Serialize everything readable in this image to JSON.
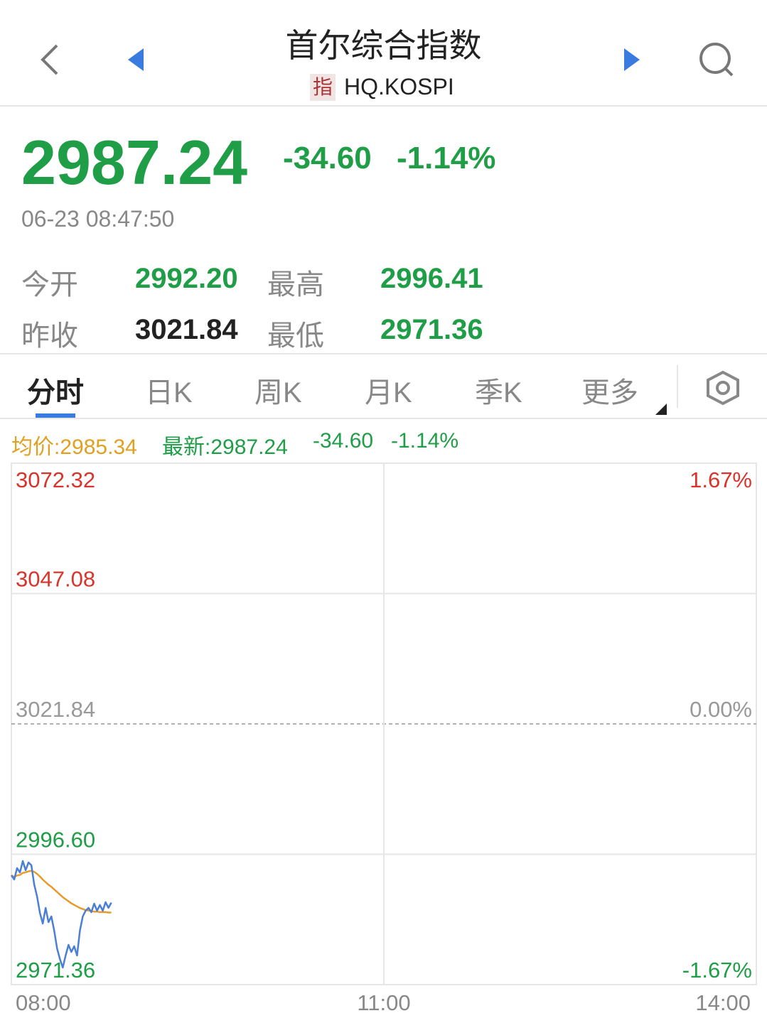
{
  "header": {
    "title": "首尔综合指数",
    "badge": "指",
    "code": "HQ.KOSPI"
  },
  "quote": {
    "price": "2987.24",
    "change": "-34.60",
    "change_pct": "-1.14%",
    "time": "06-23 08:47:50"
  },
  "stats": {
    "rows": [
      [
        "今开",
        "2992.20",
        "最高",
        "2996.41"
      ],
      [
        "昨收",
        "3021.84",
        "最低",
        "2971.36"
      ]
    ]
  },
  "tabs": [
    "分时",
    "日K",
    "周K",
    "月K",
    "季K",
    "更多"
  ],
  "chart_info": {
    "avg_label": "均价:2985.34",
    "latest_label": "最新:2987.24",
    "change": "-34.60",
    "change_pct": "-1.14%"
  },
  "chart_data": {
    "type": "line",
    "x": [
      8.0,
      8.023,
      8.046,
      8.069,
      8.092,
      8.115,
      8.138,
      8.161,
      8.184,
      8.207,
      8.23,
      8.253,
      8.276,
      8.299,
      8.322,
      8.345,
      8.368,
      8.391,
      8.414,
      8.437,
      8.46,
      8.483,
      8.506,
      8.529,
      8.552,
      8.575,
      8.598,
      8.621,
      8.644,
      8.667,
      8.69,
      8.713,
      8.736,
      8.759,
      8.782,
      8.805
    ],
    "series": [
      {
        "color": "#4a7fd4",
        "values": [
          2992.54,
          2991.72,
          2993.92,
          2993.09,
          2995.29,
          2993.51,
          2995.02,
          2994.47,
          2990.75,
          2988.42,
          2985.25,
          2983.19,
          2986.22,
          2983.46,
          2984.56,
          2981.81,
          2978.38,
          2976.31,
          2974.66,
          2977.0,
          2979.06,
          2977.69,
          2978.79,
          2977.0,
          2981.81,
          2984.56,
          2985.67,
          2986.22,
          2985.39,
          2987.04,
          2985.67,
          2986.77,
          2985.67,
          2987.32,
          2986.22,
          2987.24
        ]
      },
      {
        "color": "#e89a2c",
        "values": [
          2992.54,
          2992.2,
          2992.5,
          2992.6,
          2993.0,
          2993.1,
          2993.3,
          2993.4,
          2993.2,
          2992.8,
          2992.3,
          2991.7,
          2991.2,
          2990.7,
          2990.3,
          2989.8,
          2989.3,
          2988.8,
          2988.3,
          2987.9,
          2987.5,
          2987.1,
          2986.8,
          2986.5,
          2986.2,
          2986.0,
          2985.8,
          2985.7,
          2985.6,
          2985.5,
          2985.5,
          2985.4,
          2985.4,
          2985.4,
          2985.3,
          2985.34
        ]
      }
    ],
    "baseline": 3021.84,
    "xlim": [
      8,
      14
    ],
    "xticks": [
      {
        "value": 8,
        "label": "08:00"
      },
      {
        "value": 11,
        "label": "11:00"
      },
      {
        "value": 14,
        "label": "14:00"
      }
    ],
    "ylim": [
      2971.36,
      3072.32
    ],
    "yticks": [
      3072.32,
      3047.08,
      3021.84,
      {
        "value": 2996.6,
        "label": "2996.60"
      },
      2971.36
    ],
    "y2lim": [
      -1.67,
      1.67
    ],
    "y2ticks": [
      {
        "value": 1.67,
        "label": "1.67%"
      },
      {
        "value": 0,
        "label": "0.00%"
      },
      {
        "value": -1.67,
        "label": "-1.67%"
      }
    ]
  }
}
